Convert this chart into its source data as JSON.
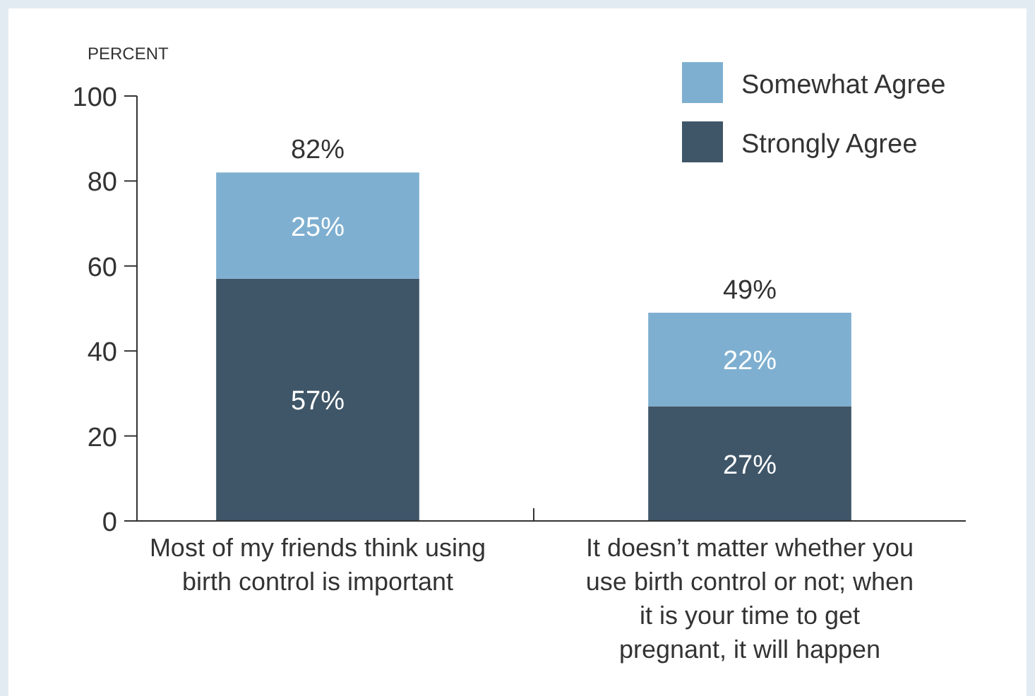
{
  "chart_data": {
    "type": "bar",
    "ylabel": "PERCENT",
    "stacked": true,
    "categories": [
      "Most of my friends think using birth control is important",
      "It doesn’t matter whether you use birth control or not; when it is your time to get pregnant, it will happen"
    ],
    "series": [
      {
        "name": "Strongly Agree",
        "color": "#3f5668",
        "values": [
          57,
          27
        ],
        "value_labels": [
          "57%",
          "27%"
        ]
      },
      {
        "name": "Somewhat Agree",
        "color": "#7eafd0",
        "values": [
          25,
          22
        ],
        "value_labels": [
          "25%",
          "22%"
        ]
      }
    ],
    "totals": [
      "82%",
      "49%"
    ],
    "ylim": [
      0,
      100
    ],
    "yticks": [
      0,
      20,
      40,
      60,
      80,
      100
    ],
    "legend": "top right"
  }
}
